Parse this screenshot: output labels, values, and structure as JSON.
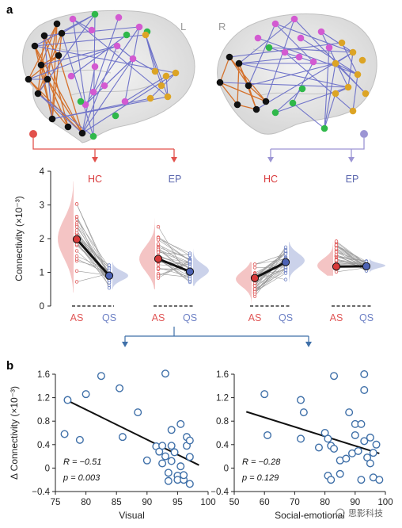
{
  "colors": {
    "hc": "#d8383a",
    "ep": "#5a66ad",
    "as": "#e05656",
    "qs": "#6b7fc4",
    "scatter_point": "#3e6fa8",
    "arrow_red": "#e2504b",
    "arrow_purple": "#9c95d4",
    "edge_orange": "#d4712c",
    "edge_blue": "#6f73c9",
    "node_black": "#111111",
    "node_magenta": "#d35ad1",
    "node_green": "#2fb84a",
    "node_gold": "#dca425"
  },
  "panel_a": {
    "label": "a",
    "hemispheres": {
      "left": "L",
      "right": "R"
    },
    "tree_left": {
      "top": "HC",
      "bottom": "EP"
    },
    "tree_right": {
      "top": "HC",
      "bottom": "EP"
    }
  },
  "panel_b": {
    "label": "b",
    "watermark": "思影科技"
  },
  "chart_data": [
    {
      "type": "violin-paired",
      "ylabel": "Connectivity (×10⁻³)",
      "ylim": [
        0,
        4
      ],
      "yticks": [
        "0",
        "1",
        "2",
        "3",
        "4"
      ],
      "groups": [
        {
          "name": "HC",
          "x_labels": [
            "AS",
            "QS"
          ],
          "means": [
            1.98,
            0.9
          ]
        },
        {
          "name": "EP",
          "x_labels": [
            "AS",
            "QS"
          ],
          "means": [
            1.4,
            1.02
          ]
        },
        {
          "name": "HC",
          "x_labels": [
            "AS",
            "QS"
          ],
          "means": [
            0.83,
            1.3
          ]
        },
        {
          "name": "EP",
          "x_labels": [
            "AS",
            "QS"
          ],
          "means": [
            1.17,
            1.18
          ]
        }
      ]
    },
    {
      "type": "scatter",
      "xlabel": "Visual",
      "ylabel": "Δ Connectivity (×10⁻³)",
      "xlim": [
        75,
        100
      ],
      "ylim": [
        -0.4,
        1.6
      ],
      "xticks": [
        "75",
        "80",
        "85",
        "90",
        "95",
        "100"
      ],
      "yticks": [
        "−0.4",
        "0",
        "0.4",
        "0.8",
        "1.2",
        "1.6"
      ],
      "stats": {
        "R": "R = −0.51",
        "p": "p = 0.003"
      },
      "fit": {
        "x": [
          77,
          98.5
        ],
        "y": [
          1.15,
          0.05
        ]
      },
      "points": [
        [
          76.5,
          0.58
        ],
        [
          77.0,
          1.16
        ],
        [
          79.0,
          0.48
        ],
        [
          80.0,
          1.26
        ],
        [
          82.5,
          1.57
        ],
        [
          85.5,
          1.36
        ],
        [
          86.0,
          0.53
        ],
        [
          88.5,
          0.95
        ],
        [
          90.0,
          0.13
        ],
        [
          91.5,
          0.37
        ],
        [
          92.0,
          0.28
        ],
        [
          92.5,
          0.38
        ],
        [
          92.5,
          0.08
        ],
        [
          93.0,
          1.61
        ],
        [
          93.0,
          0.2
        ],
        [
          93.5,
          -0.08
        ],
        [
          93.5,
          -0.22
        ],
        [
          94.0,
          0.65
        ],
        [
          94.0,
          0.38
        ],
        [
          94.0,
          0.12
        ],
        [
          94.5,
          0.27
        ],
        [
          95.0,
          -0.13
        ],
        [
          95.0,
          -0.2
        ],
        [
          95.5,
          0.03
        ],
        [
          95.5,
          0.75
        ],
        [
          96.0,
          -0.2
        ],
        [
          96.0,
          -0.12
        ],
        [
          96.5,
          0.53
        ],
        [
          96.5,
          0.38
        ],
        [
          97.0,
          0.47
        ],
        [
          97.0,
          0.19
        ],
        [
          97.0,
          -0.27
        ]
      ]
    },
    {
      "type": "scatter",
      "xlabel": "Social-emotional",
      "ylabel": "",
      "xlim": [
        50,
        100
      ],
      "ylim": [
        -0.4,
        1.6
      ],
      "xticks": [
        "50",
        "60",
        "70",
        "80",
        "90",
        "100"
      ],
      "yticks": [
        "−0.4",
        "0",
        "0.4",
        "0.8",
        "1.2",
        "1.6"
      ],
      "stats": {
        "R": "R = −0.28",
        "p": "p = 0.129"
      },
      "fit": {
        "x": [
          54,
          98
        ],
        "y": [
          0.96,
          0.25
        ]
      },
      "points": [
        [
          60,
          1.26
        ],
        [
          61,
          0.56
        ],
        [
          72,
          1.16
        ],
        [
          73,
          0.95
        ],
        [
          72,
          0.5
        ],
        [
          78,
          0.35
        ],
        [
          80,
          0.6
        ],
        [
          81,
          0.5
        ],
        [
          81,
          -0.13
        ],
        [
          82,
          0.38
        ],
        [
          82,
          -0.2
        ],
        [
          83,
          0.33
        ],
        [
          83,
          1.57
        ],
        [
          85,
          0.13
        ],
        [
          85,
          -0.1
        ],
        [
          87,
          0.16
        ],
        [
          88,
          0.95
        ],
        [
          89,
          0.25
        ],
        [
          90,
          0.75
        ],
        [
          90,
          0.56
        ],
        [
          91,
          0.29
        ],
        [
          92,
          0.75
        ],
        [
          92,
          -0.2
        ],
        [
          93,
          1.33
        ],
        [
          93,
          1.6
        ],
        [
          93,
          0.46
        ],
        [
          94,
          0.18
        ],
        [
          95,
          0.52
        ],
        [
          95,
          0.08
        ],
        [
          96,
          0.26
        ],
        [
          96,
          -0.16
        ],
        [
          97,
          0.4
        ],
        [
          98,
          -0.2
        ]
      ]
    }
  ]
}
